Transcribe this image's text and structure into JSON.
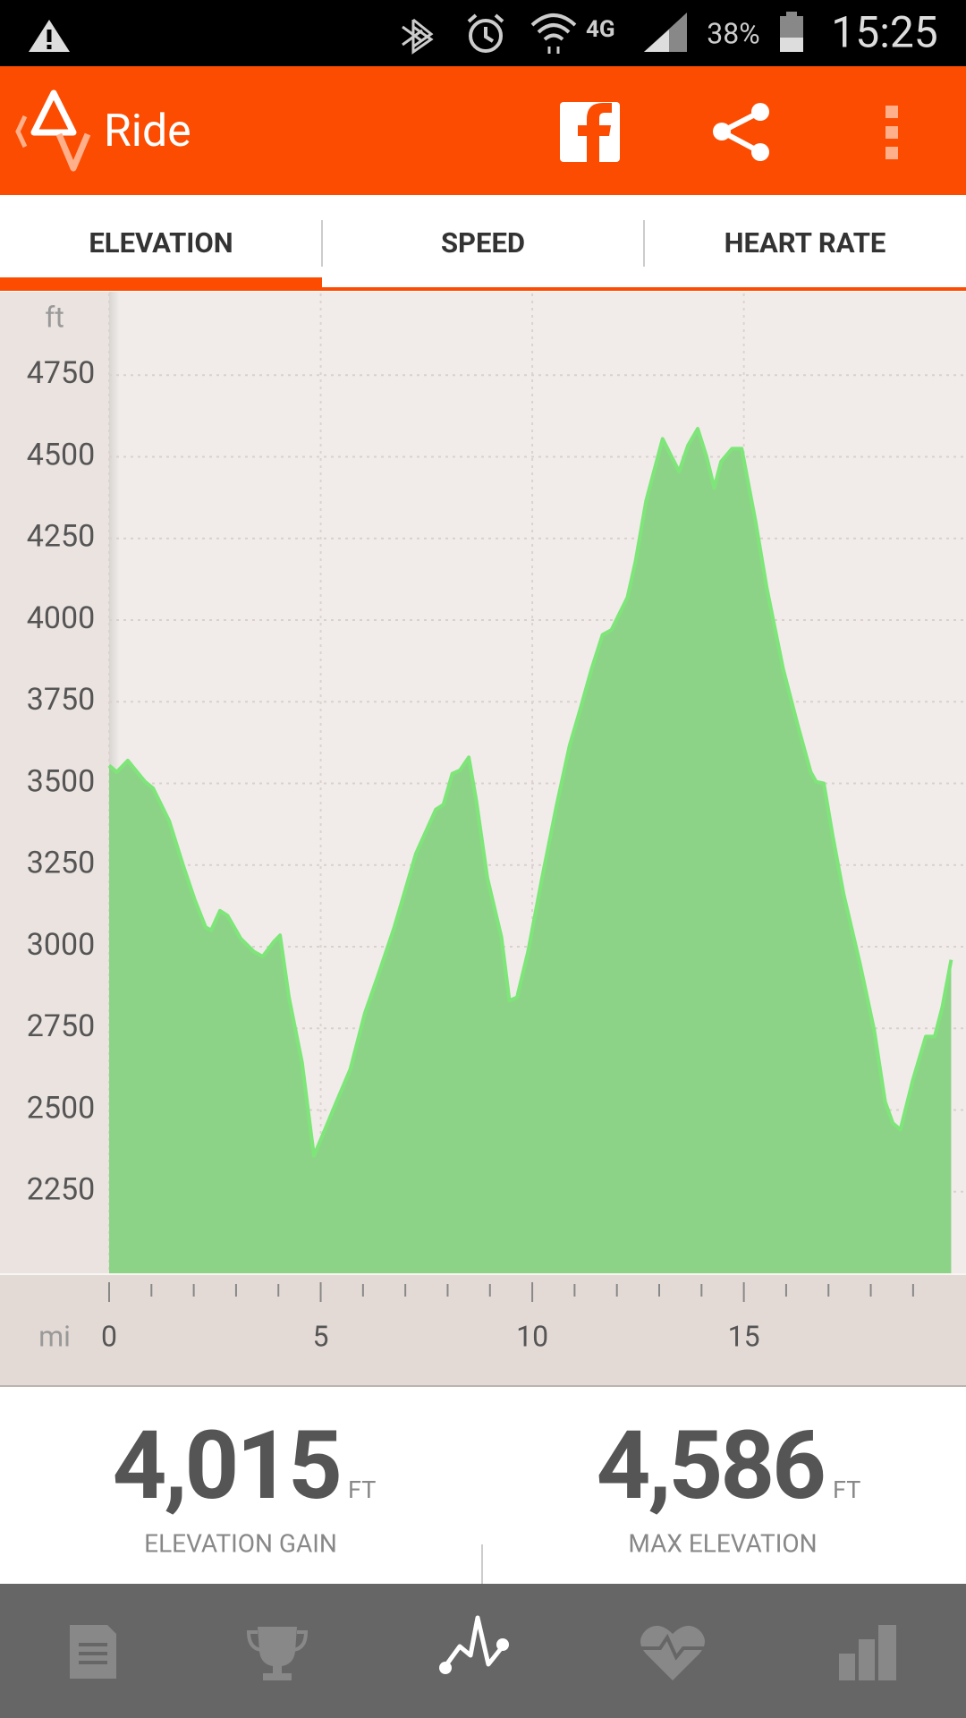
{
  "status_bar": {
    "network": "4G",
    "battery": "38%",
    "time": "15:25"
  },
  "app_bar": {
    "title": "Ride"
  },
  "tabs": [
    "ELEVATION",
    "SPEED",
    "HEART RATE"
  ],
  "chart_data": {
    "type": "area",
    "y_unit": "ft",
    "x_unit": "mi",
    "x": [
      0,
      0.18,
      0.44,
      0.85,
      1.04,
      1.42,
      1.76,
      2.02,
      2.28,
      2.41,
      2.62,
      2.8,
      3.11,
      3.42,
      3.63,
      3.89,
      4.04,
      4.25,
      4.56,
      4.84,
      5.1,
      5.34,
      5.7,
      6.04,
      6.35,
      6.74,
      7.25,
      7.72,
      7.9,
      8.11,
      8.29,
      8.5,
      8.68,
      8.94,
      9.27,
      9.46,
      9.64,
      9.9,
      10.23,
      10.57,
      10.88,
      11.14,
      11.4,
      11.66,
      11.87,
      12.25,
      12.44,
      12.69,
      13.08,
      13.47,
      13.68,
      13.91,
      14.12,
      14.3,
      14.46,
      14.72,
      14.95,
      15.28,
      15.54,
      15.93,
      16.27,
      16.58,
      16.71,
      16.89,
      17.1,
      17.36,
      17.75,
      18.08,
      18.34,
      18.52,
      18.7,
      18.99,
      19.3,
      19.51,
      19.69,
      19.9
    ],
    "values": [
      3555,
      3535,
      3570,
      3505,
      3485,
      3385,
      3245,
      3145,
      3060,
      3050,
      3110,
      3095,
      3025,
      2985,
      2970,
      3015,
      3035,
      2845,
      2645,
      2360,
      2440,
      2515,
      2625,
      2795,
      2910,
      3060,
      3285,
      3420,
      3435,
      3530,
      3540,
      3580,
      3445,
      3210,
      3030,
      2835,
      2845,
      2985,
      3210,
      3430,
      3615,
      3730,
      3850,
      3955,
      3970,
      4070,
      4180,
      4365,
      4555,
      4455,
      4535,
      4586,
      4500,
      4405,
      4485,
      4525,
      4525,
      4300,
      4100,
      3850,
      3680,
      3535,
      3505,
      3500,
      3340,
      3160,
      2945,
      2745,
      2525,
      2460,
      2440,
      2590,
      2725,
      2725,
      2815,
      2960
    ],
    "color": "#8dd387",
    "line_color": "#7ee679",
    "xlim": [
      0,
      20.25
    ],
    "ylim": [
      2000,
      5000
    ],
    "xticks": [
      0,
      5,
      10,
      15
    ],
    "xminorticks": [
      1,
      2,
      3,
      4,
      6,
      7,
      8,
      9,
      11,
      12,
      13,
      14,
      16,
      17,
      18,
      19
    ],
    "yticks": [
      2250,
      2500,
      2750,
      3000,
      3250,
      3500,
      3750,
      4000,
      4250,
      4500,
      4750
    ],
    "grid": true
  },
  "stats": [
    {
      "value": "4,015",
      "unit": "FT",
      "label": "ELEVATION GAIN"
    },
    {
      "value": "4,586",
      "unit": "FT",
      "label": "MAX ELEVATION"
    }
  ]
}
